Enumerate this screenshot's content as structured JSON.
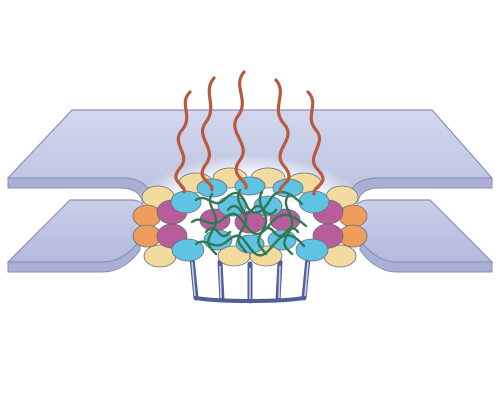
{
  "figure": {
    "caption": "",
    "colors": {
      "background": "#ffffff",
      "membrane_fill": "#c5cbe4",
      "membrane_edge": "#8a90b8",
      "membrane_shadow": "#a9b0d4",
      "glow": "#ffffff",
      "fiber": "#b85a3e",
      "tether": "#4f5f9a",
      "peg": "#c8cfe8",
      "mesh": "#2f7a55",
      "subunit_yellow": "#f3dba0",
      "subunit_orange": "#ee9d5c",
      "subunit_magenta": "#b85c9a",
      "subunit_cyan": "#5fc3e4"
    },
    "labels": []
  }
}
